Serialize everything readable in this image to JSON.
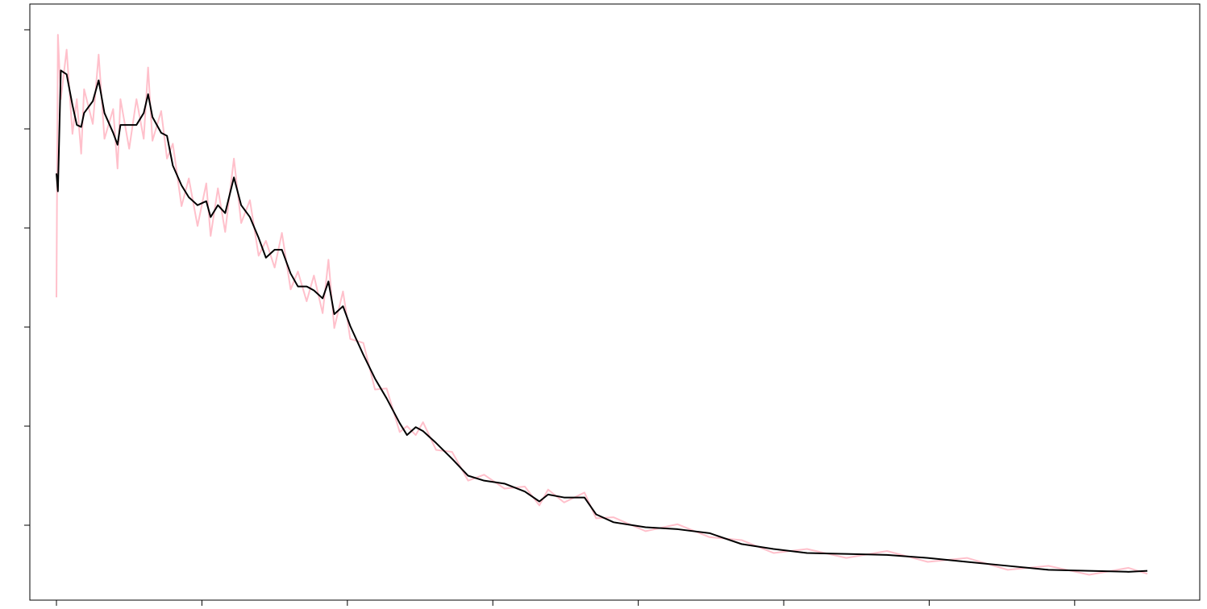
{
  "chart_data": {
    "type": "line",
    "x": [
      0,
      0.01,
      0.03,
      0.07,
      0.11,
      0.14,
      0.17,
      0.19,
      0.25,
      0.29,
      0.33,
      0.39,
      0.42,
      0.44,
      0.5,
      0.55,
      0.6,
      0.63,
      0.66,
      0.72,
      0.76,
      0.8,
      0.86,
      0.91,
      0.97,
      1.03,
      1.06,
      1.11,
      1.16,
      1.22,
      1.27,
      1.33,
      1.39,
      1.44,
      1.5,
      1.55,
      1.61,
      1.66,
      1.72,
      1.77,
      1.83,
      1.87,
      1.91,
      1.97,
      2.02,
      2.11,
      2.19,
      2.27,
      2.36,
      2.41,
      2.47,
      2.52,
      2.61,
      2.72,
      2.83,
      2.94,
      3.08,
      3.22,
      3.32,
      3.38,
      3.49,
      3.63,
      3.71,
      3.83,
      4.05,
      4.27,
      4.49,
      4.71,
      4.93,
      5.16,
      5.43,
      5.71,
      5.99,
      6.26,
      6.54,
      6.82,
      7.1,
      7.37,
      7.5
    ],
    "series": [
      {
        "color": "#ffc0cb",
        "values": [
          2.3,
          4.95,
          4.3,
          4.8,
          3.95,
          4.3,
          3.75,
          4.4,
          4.05,
          4.75,
          3.9,
          4.2,
          3.6,
          4.3,
          3.8,
          4.3,
          3.9,
          4.62,
          3.88,
          4.18,
          3.7,
          3.85,
          3.22,
          3.5,
          3.02,
          3.45,
          2.92,
          3.4,
          2.96,
          3.7,
          3.05,
          3.28,
          2.72,
          2.87,
          2.6,
          2.95,
          2.38,
          2.56,
          2.26,
          2.52,
          2.14,
          2.68,
          1.99,
          2.36,
          1.88,
          1.84,
          1.37,
          1.38,
          0.94,
          1.0,
          0.91,
          1.04,
          0.76,
          0.74,
          0.45,
          0.51,
          0.37,
          0.39,
          0.2,
          0.36,
          0.23,
          0.33,
          0.07,
          0.08,
          -0.06,
          0.01,
          -0.12,
          -0.15,
          -0.28,
          -0.24,
          -0.33,
          -0.26,
          -0.37,
          -0.33,
          -0.45,
          -0.41,
          -0.5,
          -0.43,
          -0.49
        ]
      },
      {
        "color": "#000000",
        "values": [
          3.55,
          3.37,
          4.59,
          4.55,
          4.24,
          4.04,
          4.02,
          4.16,
          4.28,
          4.49,
          4.16,
          3.96,
          3.84,
          4.04,
          4.04,
          4.04,
          4.16,
          4.35,
          4.12,
          3.96,
          3.93,
          3.63,
          3.43,
          3.31,
          3.23,
          3.27,
          3.11,
          3.23,
          3.15,
          3.51,
          3.23,
          3.11,
          2.9,
          2.7,
          2.78,
          2.78,
          2.54,
          2.41,
          2.41,
          2.37,
          2.29,
          2.46,
          2.13,
          2.21,
          2.01,
          1.72,
          1.48,
          1.28,
          1.03,
          0.91,
          0.99,
          0.95,
          0.83,
          0.67,
          0.5,
          0.45,
          0.42,
          0.34,
          0.24,
          0.31,
          0.28,
          0.28,
          0.11,
          0.03,
          -0.02,
          -0.04,
          -0.08,
          -0.19,
          -0.24,
          -0.28,
          -0.29,
          -0.3,
          -0.33,
          -0.37,
          -0.41,
          -0.45,
          -0.46,
          -0.47,
          -0.46
        ]
      }
    ],
    "xlim": [
      -0.183,
      7.86
    ],
    "xticks": [
      0,
      1,
      2,
      3,
      4,
      5,
      6,
      7
    ],
    "ylim": [
      -0.756,
      5.26
    ],
    "yticks": [
      0,
      1,
      2,
      3,
      4,
      5
    ]
  }
}
